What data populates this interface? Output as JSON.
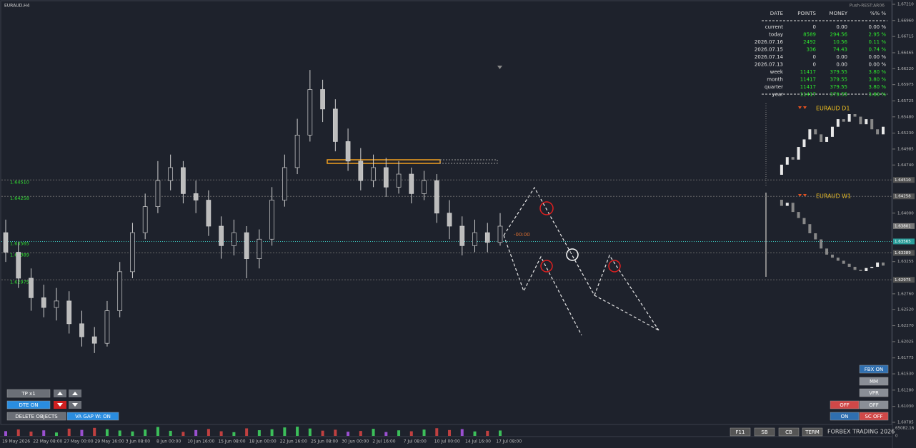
{
  "chart_data": {
    "type": "candlestick",
    "symbol": "EURAUD,H4",
    "server": "Push-REST:AR06",
    "timer": "-00:00",
    "ylim": [
      1.60785,
      1.6721
    ],
    "yticks": [
      {
        "value": 1.6721,
        "label": "1.67210"
      },
      {
        "value": 1.6696,
        "label": "1.66960"
      },
      {
        "value": 1.66715,
        "label": "1.66715"
      },
      {
        "value": 1.66465,
        "label": "1.66465"
      },
      {
        "value": 1.6622,
        "label": "1.66220"
      },
      {
        "value": 1.65975,
        "label": "1.65975"
      },
      {
        "value": 1.65725,
        "label": "1.65725"
      },
      {
        "value": 1.6548,
        "label": "1.65480"
      },
      {
        "value": 1.6523,
        "label": "1.65230"
      },
      {
        "value": 1.64985,
        "label": "1.64985"
      },
      {
        "value": 1.6474,
        "label": "1.64740"
      },
      {
        "value": 1.64,
        "label": "1.64000"
      },
      {
        "value": 1.63255,
        "label": "1.63255"
      },
      {
        "value": 1.6276,
        "label": "1.62760"
      },
      {
        "value": 1.6252,
        "label": "1.62520"
      },
      {
        "value": 1.6227,
        "label": "1.62270"
      },
      {
        "value": 1.62025,
        "label": "1.62025"
      },
      {
        "value": 1.61775,
        "label": "1.61775"
      },
      {
        "value": 1.6153,
        "label": "1.61530"
      },
      {
        "value": 1.6128,
        "label": "1.61280"
      },
      {
        "value": 1.6103,
        "label": "1.61030"
      },
      {
        "value": 1.60785,
        "label": "1.60785"
      }
    ],
    "levels": [
      {
        "value": 1.6451,
        "label": "1.64510"
      },
      {
        "value": 1.64258,
        "label": "1.64258"
      },
      {
        "value": 1.63565,
        "label": "1.63565"
      },
      {
        "value": 1.63389,
        "label": "1.63389"
      },
      {
        "value": 1.62975,
        "label": "1.62975"
      }
    ],
    "current_price": {
      "value": 1.63801,
      "label": "1.63801"
    },
    "open": [
      1.637,
      1.634,
      1.63,
      1.627,
      1.6255,
      1.6265,
      1.623,
      1.621,
      1.62,
      1.625,
      1.631,
      1.637,
      1.641,
      1.645,
      1.647,
      1.643,
      1.642,
      1.638,
      1.635,
      1.637,
      1.633,
      1.636,
      1.642,
      1.647,
      1.652,
      1.659,
      1.656,
      1.651,
      1.648,
      1.645,
      1.647,
      1.644,
      1.646,
      1.643,
      1.645,
      1.64,
      1.638,
      1.635,
      1.637,
      1.6355
    ],
    "high": [
      1.639,
      1.6355,
      1.6315,
      1.629,
      1.6285,
      1.628,
      1.625,
      1.6225,
      1.6265,
      1.6325,
      1.6385,
      1.643,
      1.648,
      1.649,
      1.648,
      1.645,
      1.6435,
      1.6395,
      1.639,
      1.638,
      1.6375,
      1.644,
      1.649,
      1.6545,
      1.662,
      1.6605,
      1.6575,
      1.653,
      1.65,
      1.649,
      1.6485,
      1.648,
      1.647,
      1.6465,
      1.646,
      1.642,
      1.6395,
      1.639,
      1.6385,
      1.64
    ],
    "low": [
      1.6325,
      1.6285,
      1.625,
      1.624,
      1.6235,
      1.6215,
      1.6195,
      1.6185,
      1.6195,
      1.624,
      1.63,
      1.636,
      1.64,
      1.6435,
      1.6415,
      1.64,
      1.6365,
      1.633,
      1.6335,
      1.63,
      1.6315,
      1.635,
      1.641,
      1.646,
      1.651,
      1.654,
      1.6495,
      1.6465,
      1.6435,
      1.644,
      1.6425,
      1.643,
      1.6415,
      1.642,
      1.6385,
      1.636,
      1.6335,
      1.634,
      1.634,
      1.635
    ],
    "close": [
      1.634,
      1.63,
      1.627,
      1.6255,
      1.6265,
      1.623,
      1.621,
      1.62,
      1.625,
      1.631,
      1.637,
      1.641,
      1.645,
      1.647,
      1.643,
      1.642,
      1.638,
      1.635,
      1.637,
      1.633,
      1.636,
      1.642,
      1.647,
      1.652,
      1.659,
      1.656,
      1.651,
      1.648,
      1.645,
      1.647,
      1.644,
      1.646,
      1.643,
      1.645,
      1.64,
      1.638,
      1.635,
      1.637,
      1.6355,
      1.638
    ],
    "volume": [
      31000,
      42000,
      28000,
      36000,
      22000,
      47000,
      39000,
      52000,
      44000,
      35000,
      29000,
      41000,
      58000,
      33000,
      26000,
      38000,
      45000,
      30000,
      24000,
      49000,
      37000,
      43000,
      55000,
      60000,
      48000,
      34000,
      40000,
      27000,
      32000,
      46000,
      25000,
      36000,
      30000,
      41000,
      50000,
      38000,
      44000,
      29000,
      33000,
      35000
    ],
    "volume_max": {
      "value": 65082.16,
      "label": "65082.16"
    },
    "volume_min": 0,
    "time_axis": [
      "19 May 2026",
      "22 May 08:00",
      "27 May 00:00",
      "29 May 16:00",
      "3 Jun 08:00",
      "8 Jun 00:00",
      "10 Jun 16:00",
      "15 Jun 08:00",
      "18 Jun 00:00",
      "22 Jun 16:00",
      "25 Jun 08:00",
      "30 Jun 00:00",
      "2 Jul 16:00",
      "7 Jul 08:00",
      "10 Jul 00:00",
      "14 Jul 16:00",
      "17 Jul 08:00"
    ]
  },
  "stats_table": {
    "header": [
      "DATE",
      "POINTS",
      "MONEY",
      "%% %"
    ],
    "rows": [
      [
        "current",
        "0",
        "0.00",
        "0.00 %"
      ],
      [
        "today",
        "8589",
        "294.56",
        "2.95 %"
      ],
      [
        "2026.07.16",
        "2492",
        "10.56",
        "0.11 %"
      ],
      [
        "2026.07.15",
        "336",
        "74.43",
        "0.74 %"
      ],
      [
        "2026.07.14",
        "0",
        "0.00",
        "0.00 %"
      ],
      [
        "2026.07.13",
        "0",
        "0.00",
        "0.00 %"
      ],
      [
        "week",
        "11417",
        "379.55",
        "3.80 %"
      ],
      [
        "month",
        "11417",
        "379.55",
        "3.80 %"
      ],
      [
        "quarter",
        "11417",
        "379.55",
        "3.80 %"
      ],
      [
        "year",
        "11417",
        "379.55",
        "3.80 %"
      ]
    ]
  },
  "mini_charts": [
    {
      "title": "EURAUD D1",
      "close": [
        1.624,
        1.628,
        1.631,
        1.63,
        1.635,
        1.638,
        1.642,
        1.64,
        1.637,
        1.639,
        1.643,
        1.646,
        1.645,
        1.648,
        1.647,
        1.644,
        1.646,
        1.642,
        1.64,
        1.643
      ]
    },
    {
      "title": "EURAUD W1",
      "close": [
        1.7,
        1.69,
        1.695,
        1.68,
        1.67,
        1.66,
        1.645,
        1.635,
        1.62,
        1.61,
        1.605,
        1.6,
        1.595,
        1.59,
        1.585,
        1.583,
        1.588,
        1.59,
        1.597,
        1.592
      ]
    }
  ],
  "buttons": {
    "tp": "TP x1",
    "dte": "DTE ON",
    "delete": "DELETE OBJECTS",
    "va_gap": "VA GAP W: ON",
    "fbx": "FBX ON",
    "mm": "MM",
    "vpr": "VPR",
    "off_red": "OFF",
    "off_gray": "OFF",
    "on": "ON",
    "sc_off": "SC OFF",
    "f11": "F11",
    "sb": "SB",
    "cb": "CB",
    "term": "TERM"
  },
  "brand": "FORBEX TRADING 2026"
}
